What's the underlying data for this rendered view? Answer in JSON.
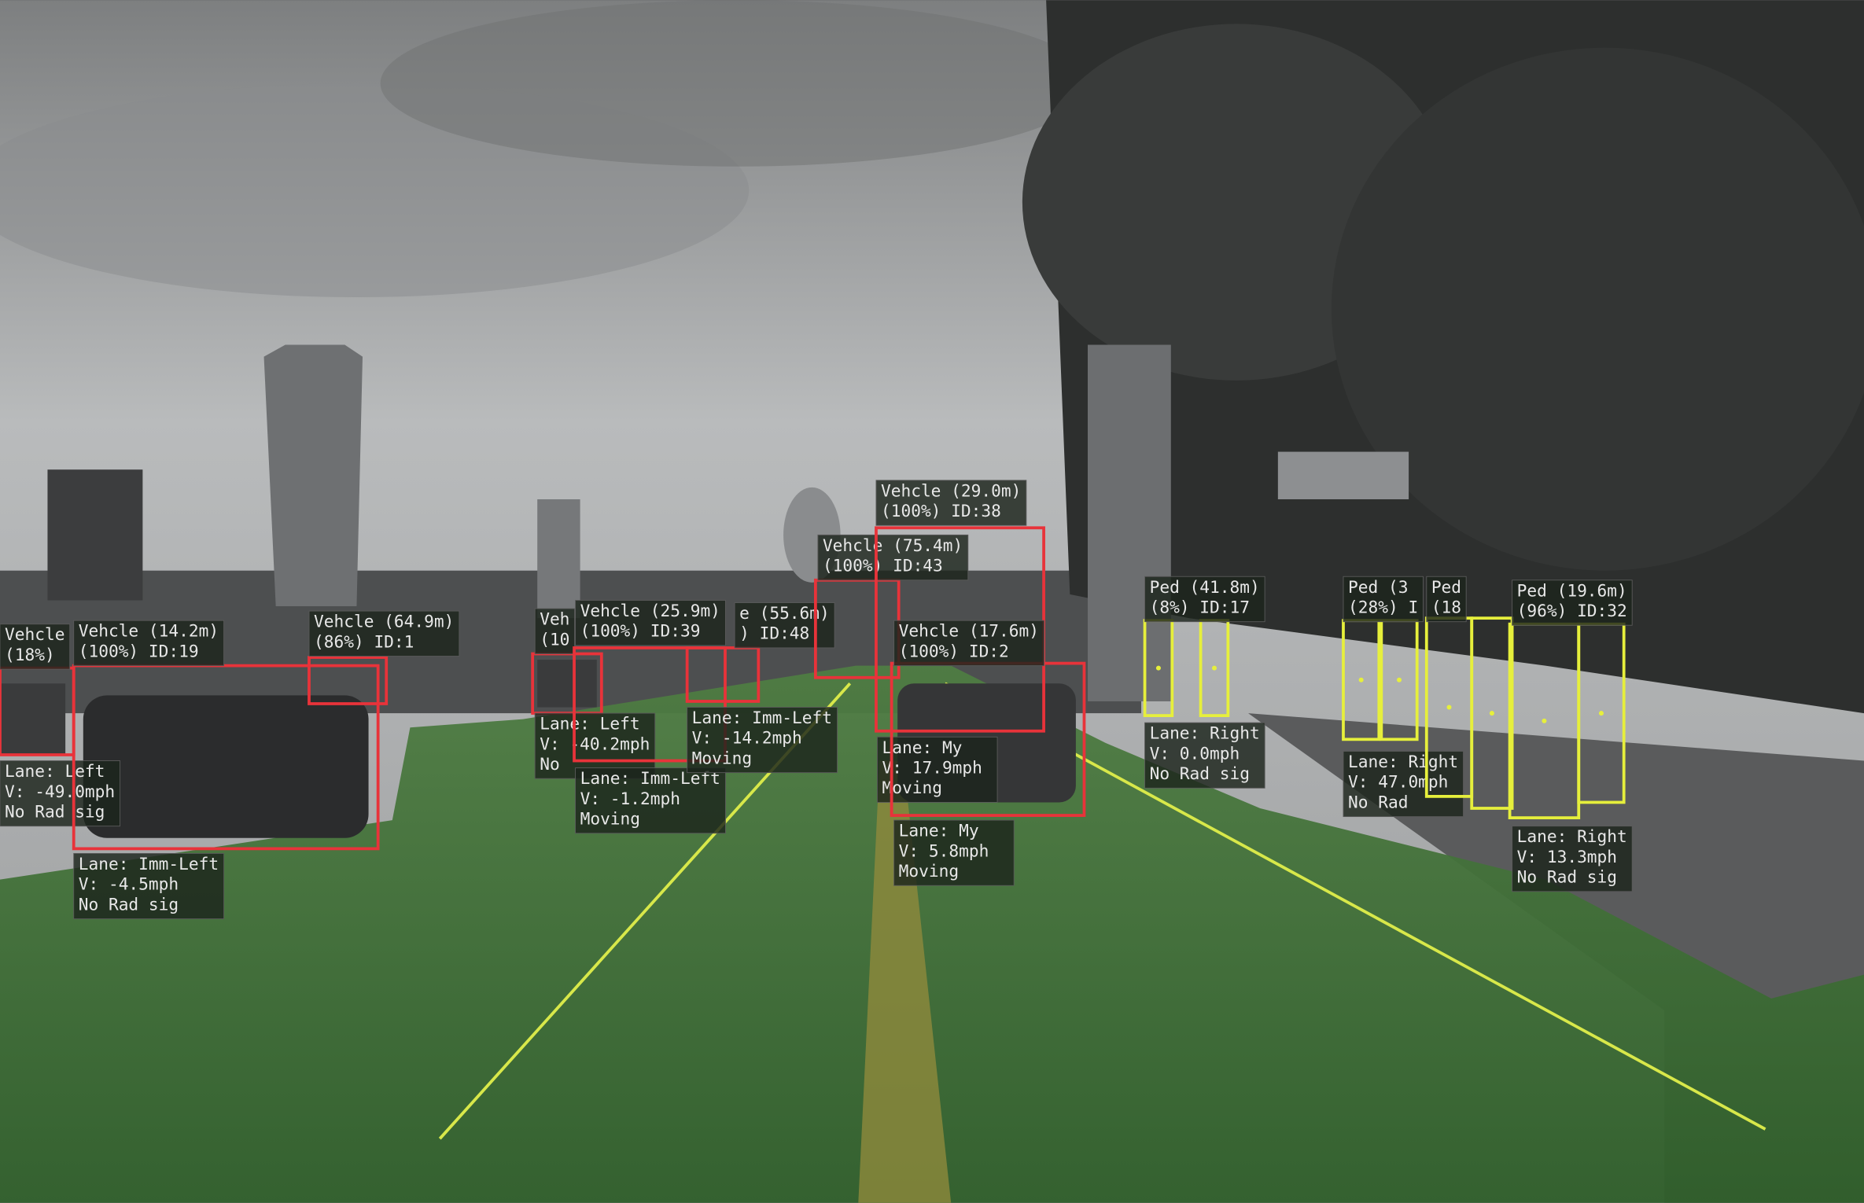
{
  "detections": [
    {
      "tag": [
        "Vehcle",
        "(18%)"
      ],
      "info": [
        "Lane: Left",
        "V: -49.0mph",
        "No Rad sig"
      ]
    },
    {
      "tag": [
        "Vehcle (14.2m)",
        "(100%) ID:19"
      ],
      "info": [
        "Lane: Imm-Left",
        "V:  -4.5mph",
        "No Rad sig"
      ]
    },
    {
      "tag": [
        "Vehcle (64.9m)",
        "(86%) ID:1"
      ]
    },
    {
      "tag": [
        "Veh",
        "(10"
      ],
      "info": [
        "Lane: Left",
        "V: -40.2mph",
        "No"
      ]
    },
    {
      "tag": [
        "Vehcle (25.9m)",
        "(100%) ID:39"
      ],
      "info": [
        "Lane: Imm-Left",
        "V:  -1.2mph",
        "Moving"
      ]
    },
    {
      "tag": [
        "e (55.6m)",
        ") ID:48"
      ],
      "info": [
        "Lane: Imm-Left",
        "V: -14.2mph",
        "Moving"
      ]
    },
    {
      "tag": [
        "Vehcle (75.4m)",
        "(100%) ID:43"
      ]
    },
    {
      "tag": [
        "Vehcle (29.0m)",
        "(100%) ID:38"
      ],
      "info": [
        "Lane: My",
        "V:  17.9mph",
        "Moving"
      ]
    },
    {
      "tag": [
        "Vehcle (17.6m)",
        "(100%) ID:2"
      ],
      "info": [
        "Lane: My",
        "V:   5.8mph",
        "Moving"
      ]
    },
    {
      "tag": [
        "Ped (41.8m)",
        "(8%) ID:17"
      ],
      "info": [
        "Lane: Right",
        "V:   0.0mph",
        "No Rad sig"
      ]
    },
    {
      "tag": [
        "Ped (3",
        "(28%) I"
      ],
      "info": [
        "Lane: Right",
        "V:  47.0mph",
        "No Rad"
      ]
    },
    {
      "tag": [
        "Ped",
        "(18"
      ]
    },
    {
      "tag": [
        "Ped (19.6m)",
        "(96%) ID:32"
      ],
      "info": [
        "Lane: Right",
        "V:  13.3mph",
        "No Rad sig"
      ]
    }
  ]
}
